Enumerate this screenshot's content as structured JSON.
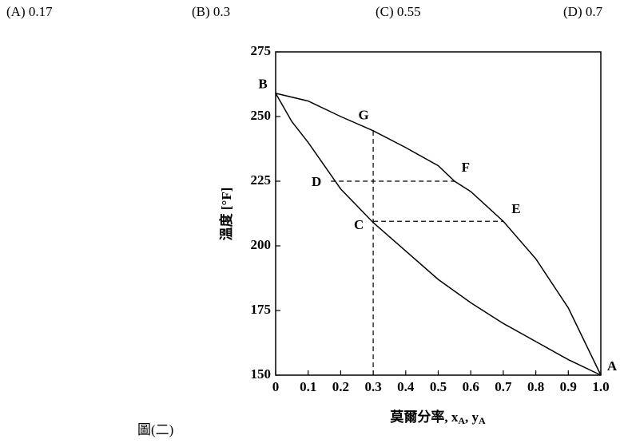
{
  "options": [
    "(A) 0.17",
    "(B) 0.3",
    "(C) 0.55",
    "(D) 0.7"
  ],
  "caption": "圖(二)",
  "chart_data": {
    "type": "line",
    "xlabel": [
      "莫爾分率, x",
      "A",
      ", y",
      "A"
    ],
    "ylabel": "溫度 [°F]",
    "xlim": [
      0,
      1
    ],
    "ylim": [
      150,
      275
    ],
    "xticks": [
      0,
      0.1,
      0.2,
      0.3,
      0.4,
      0.5,
      0.6,
      0.7,
      0.8,
      0.9,
      {
        "value": 1,
        "label": "1.0"
      }
    ],
    "yticks": [
      150,
      175,
      200,
      225,
      250,
      275
    ],
    "series": [
      {
        "color": "#000000",
        "x": [
          0,
          0.05,
          0.1,
          0.2,
          0.3,
          0.4,
          0.5,
          0.6,
          0.7,
          0.8,
          0.9,
          1
        ],
        "values": [
          259,
          248,
          240,
          222,
          209,
          198,
          187,
          178,
          170,
          163,
          156,
          150
        ]
      },
      {
        "color": "#000000",
        "x": [
          0,
          0.1,
          0.2,
          0.3,
          0.4,
          0.5,
          0.55,
          0.6,
          0.7,
          0.8,
          0.9,
          1
        ],
        "values": [
          259,
          256,
          250,
          244.5,
          238,
          231,
          225,
          221,
          209.5,
          195,
          176,
          150
        ]
      }
    ],
    "dashed_lines": [
      {
        "x": [
          0.3,
          0.3
        ],
        "y": [
          150,
          244.5
        ]
      },
      {
        "x": [
          0.17,
          0.55
        ],
        "y": [
          225,
          225
        ]
      },
      {
        "x": [
          0.3,
          0.7
        ],
        "y": [
          209.5,
          209.5
        ]
      }
    ],
    "point_labels": [
      {
        "text": "B",
        "x": 0,
        "y": 259
      },
      {
        "text": "G",
        "x": 0.3,
        "y": 244.5
      },
      {
        "text": "F",
        "x": 0.55,
        "y": 225
      },
      {
        "text": "D",
        "x": 0.17,
        "y": 225
      },
      {
        "text": "E",
        "x": 0.7,
        "y": 209.5
      },
      {
        "text": "C",
        "x": 0.3,
        "y": 209.5
      },
      {
        "text": "A",
        "x": 1,
        "y": 150
      }
    ]
  }
}
